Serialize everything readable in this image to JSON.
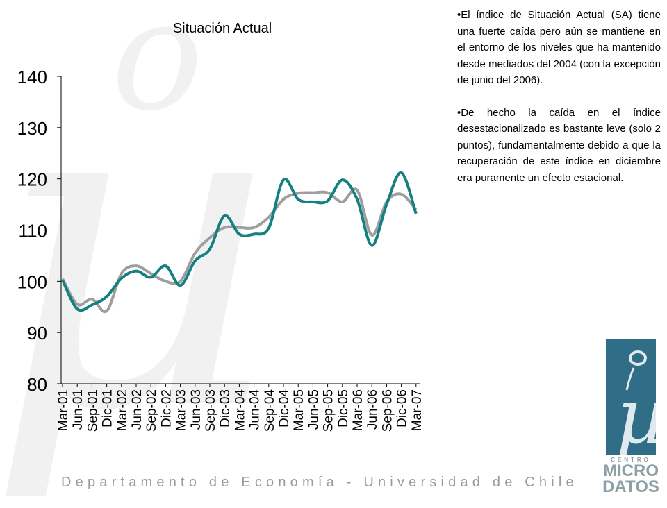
{
  "text_panel": {
    "paragraphs": [
      "•El índice de Situación Actual (SA) tiene una fuerte caída pero aún se mantiene en el entorno de los niveles que ha mantenido desde mediados del 2004 (con la excepción de junio del 2006).",
      "•De hecho la caída en el índice desestacionalizado es bastante leve (solo 2 puntos), fundamentalmente debido a que la recuperación de este índice en diciembre era puramente un efecto estacional."
    ]
  },
  "footer": {
    "text": "Departamento de Economía - Universidad de Chile"
  },
  "logo": {
    "top_word": "CENTRO",
    "middle_word": "MICRO",
    "bottom_word": "DATOS",
    "color": "#2f6e86"
  },
  "chart_data": {
    "type": "line",
    "title": "Situación Actual",
    "xlabel": "",
    "ylabel": "",
    "ylim": [
      80,
      140
    ],
    "yticks": [
      80,
      90,
      100,
      110,
      120,
      130,
      140
    ],
    "grid": false,
    "legend": "none",
    "categories": [
      "Mar-01",
      "Jun-01",
      "Sep-01",
      "Dic-01",
      "Mar-02",
      "Jun-02",
      "Sep-02",
      "Dic-02",
      "Mar-03",
      "Jun-03",
      "Sep-03",
      "Dic-03",
      "Mar-04",
      "Jun-04",
      "Sep-04",
      "Dic-04",
      "Mar-05",
      "Jun-05",
      "Sep-05",
      "Dic-05",
      "Mar-06",
      "Jun-06",
      "Sep-06",
      "Dic-06",
      "Mar-07"
    ],
    "series": [
      {
        "color": "#9e9e9e",
        "values": [
          100.5,
          95.5,
          96.5,
          94.2,
          101.5,
          103,
          101.5,
          100,
          100,
          105.5,
          108.5,
          110.5,
          110.5,
          110.5,
          112.5,
          116,
          117.2,
          117.3,
          117.3,
          115.5,
          117.8,
          109,
          115.5,
          117,
          114
        ]
      },
      {
        "color": "#148080",
        "values": [
          100.2,
          94.6,
          95.4,
          97,
          100.6,
          102,
          100.8,
          103,
          99.2,
          104,
          106.3,
          112.8,
          109.2,
          109.2,
          110.4,
          119.8,
          116,
          115.5,
          115.7,
          119.8,
          116,
          107,
          115,
          121.2,
          113.2
        ]
      }
    ]
  }
}
